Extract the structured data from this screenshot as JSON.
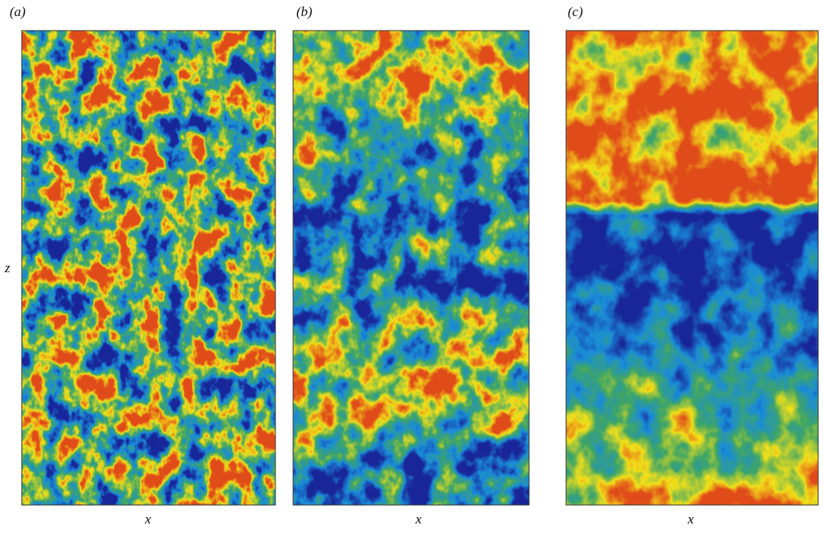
{
  "panels": [
    {
      "label": "(a)",
      "x_label": "x",
      "y_label": "z"
    },
    {
      "label": "(b)",
      "x_label": "x"
    },
    {
      "label": "(c)",
      "x_label": "x"
    }
  ]
}
